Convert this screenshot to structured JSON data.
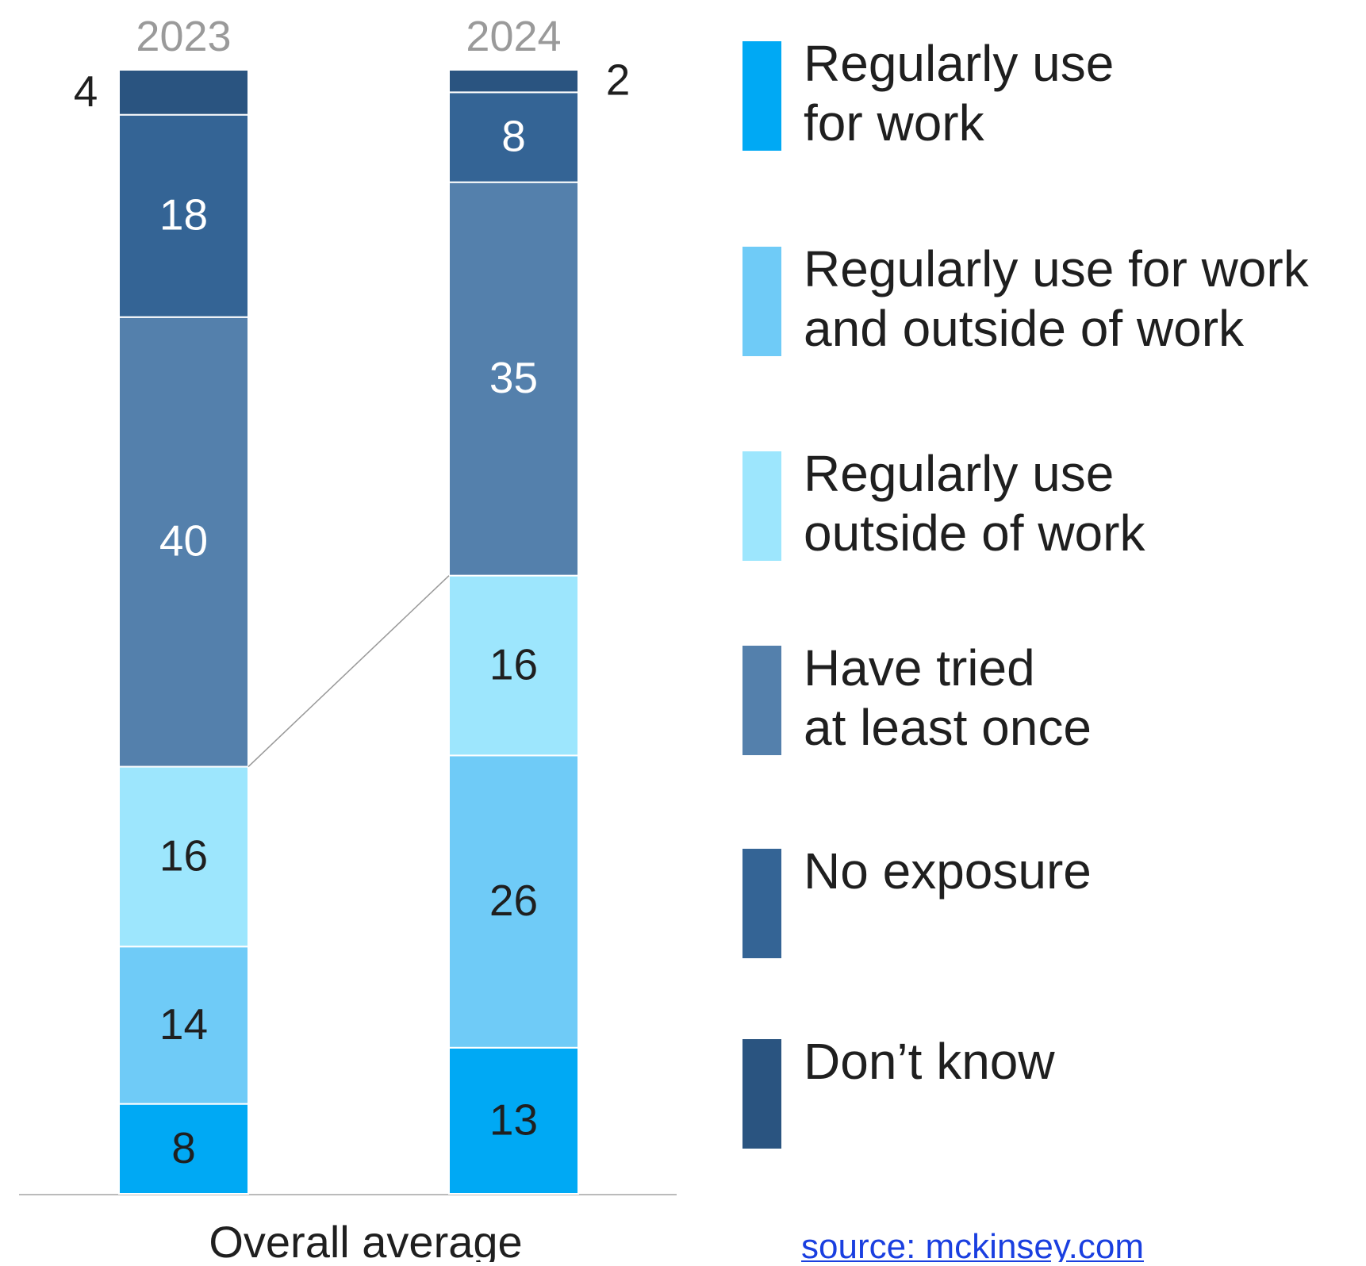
{
  "chart_data": {
    "type": "stacked_bar",
    "categories": [
      "2023",
      "2024"
    ],
    "series": [
      {
        "name": "Regularly use for work",
        "color": "#00a9f4",
        "values": [
          8,
          13
        ]
      },
      {
        "name": "Regularly use for work and outside of work",
        "color": "#6fcbf7",
        "values": [
          14,
          26
        ]
      },
      {
        "name": "Regularly use outside of work",
        "color": "#9de6fd",
        "values": [
          16,
          16
        ]
      },
      {
        "name": "Have tried at least once",
        "color": "#5480ac",
        "values": [
          40,
          35
        ]
      },
      {
        "name": "No exposure",
        "color": "#346495",
        "values": [
          18,
          8
        ]
      },
      {
        "name": "Don’t know",
        "color": "#2a5480",
        "values": [
          4,
          2
        ]
      }
    ],
    "ylim": [
      0,
      100
    ],
    "xlabel": "Overall average",
    "source": "source: mckinsey.com"
  }
}
